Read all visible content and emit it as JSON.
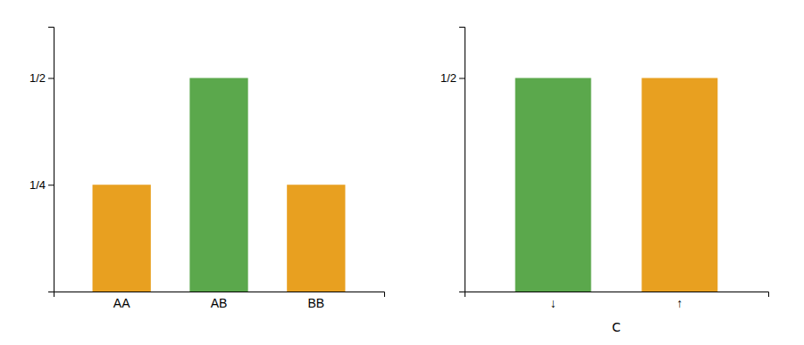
{
  "chart_data": [
    {
      "type": "bar",
      "categories": [
        "AA",
        "AB",
        "BB"
      ],
      "values": [
        0.25,
        0.5,
        0.25
      ],
      "colors": [
        "#E8A020",
        "#5BA84C",
        "#E8A020"
      ],
      "ylim": [
        0,
        0.62
      ],
      "yticks": [
        {
          "value": 0.25,
          "label": "1/4"
        },
        {
          "value": 0.5,
          "label": "1/2"
        }
      ]
    },
    {
      "type": "bar",
      "categories": [
        "↓",
        "↑"
      ],
      "values": [
        0.5,
        0.5
      ],
      "colors": [
        "#5BA84C",
        "#E8A020"
      ],
      "ylim": [
        0,
        0.62
      ],
      "yticks": [
        {
          "value": 0.5,
          "label": "1/2"
        }
      ],
      "xlabel": "C"
    }
  ]
}
